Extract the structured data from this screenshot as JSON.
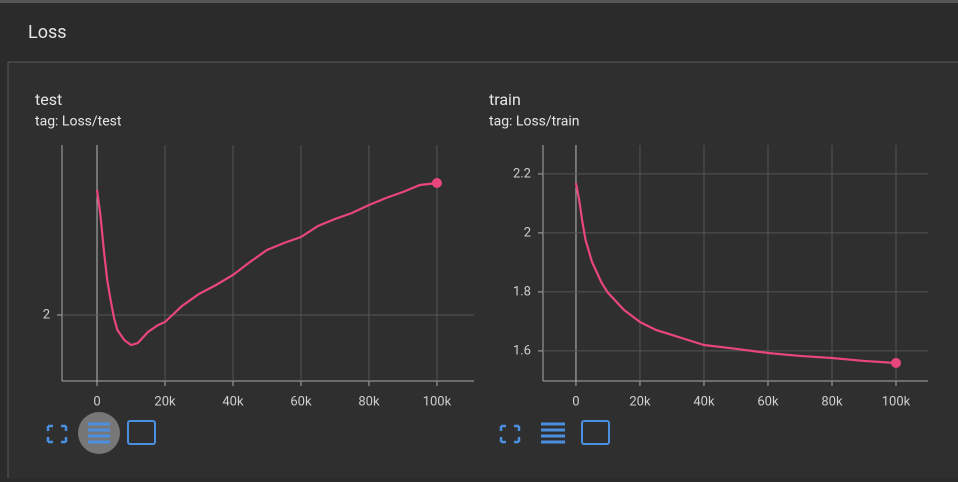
{
  "section": {
    "title": "Loss"
  },
  "chart_data": [
    {
      "type": "line",
      "title": "test",
      "subtitle": "tag: Loss/test",
      "x": [
        0,
        1000,
        2000,
        3000,
        4000,
        5000,
        6000,
        8000,
        10000,
        12000,
        15000,
        18000,
        20000,
        25000,
        30000,
        35000,
        40000,
        45000,
        50000,
        55000,
        60000,
        65000,
        70000,
        75000,
        80000,
        85000,
        90000,
        95000,
        100000
      ],
      "series": [
        {
          "name": "test",
          "color": "#e8467c",
          "values": [
            2.0625,
            2.05,
            2.0325,
            2.0175,
            2.0075,
            1.9985,
            1.9925,
            1.9875,
            1.985,
            1.986,
            1.9915,
            1.995,
            1.9965,
            2.0045,
            2.0105,
            2.015,
            2.02,
            2.0265,
            2.0325,
            2.036,
            2.039,
            2.0445,
            2.048,
            2.051,
            2.055,
            2.0585,
            2.0615,
            2.065,
            2.066
          ]
        }
      ],
      "xlim": [
        -10300,
        110900
      ],
      "ylim": [
        1.967,
        2.085
      ],
      "xticks": [
        0,
        {
          "value": 20000,
          "label": "20k"
        },
        {
          "value": 40000,
          "label": "40k"
        },
        {
          "value": 60000,
          "label": "60k"
        },
        {
          "value": 80000,
          "label": "80k"
        },
        {
          "value": 100000,
          "label": "100k"
        }
      ],
      "yticks": [
        2
      ],
      "grid": true
    },
    {
      "type": "line",
      "title": "train",
      "subtitle": "tag: Loss/train",
      "x": [
        0,
        1000,
        2000,
        3000,
        5000,
        8000,
        10000,
        15000,
        20000,
        25000,
        30000,
        35000,
        40000,
        50000,
        60000,
        70000,
        80000,
        90000,
        100000
      ],
      "series": [
        {
          "name": "train",
          "color": "#e8467c",
          "values": [
            2.169,
            2.112,
            2.037,
            1.976,
            1.902,
            1.831,
            1.797,
            1.739,
            1.698,
            1.671,
            1.654,
            1.637,
            1.62,
            1.607,
            1.593,
            1.583,
            1.576,
            1.566,
            1.559
          ]
        }
      ],
      "xlim": [
        -10300,
        110000
      ],
      "ylim": [
        1.498,
        2.298
      ],
      "xticks": [
        0,
        {
          "value": 20000,
          "label": "20k"
        },
        {
          "value": 40000,
          "label": "40k"
        },
        {
          "value": 60000,
          "label": "60k"
        },
        {
          "value": 80000,
          "label": "80k"
        },
        {
          "value": 100000,
          "label": "100k"
        }
      ],
      "yticks": [
        1.6,
        1.8,
        2,
        2.2
      ],
      "grid": true
    }
  ]
}
